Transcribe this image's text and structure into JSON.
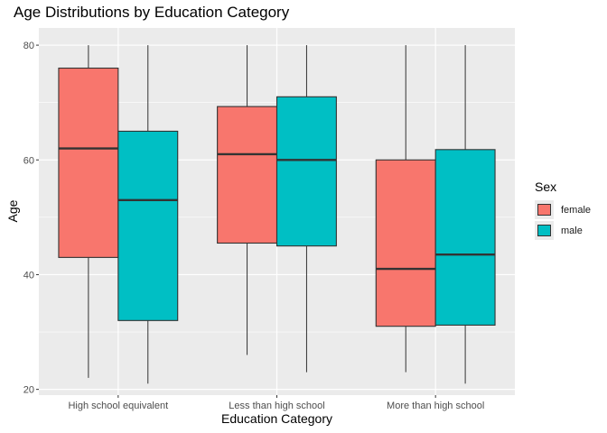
{
  "chart_data": {
    "type": "boxplot",
    "title": "Age Distributions by Education Category",
    "xlabel": "Education Category",
    "ylabel": "Age",
    "categories": [
      "High school equivalent",
      "Less than high school",
      "More than high school"
    ],
    "ylim": [
      19,
      83
    ],
    "yticks": [
      20,
      40,
      60,
      80
    ],
    "grid": true,
    "legend": {
      "title": "Sex",
      "position": "right"
    },
    "series": [
      {
        "name": "female",
        "color": "#F8766D",
        "boxes": [
          {
            "min": 22,
            "q1": 43,
            "median": 62,
            "q3": 76,
            "max": 80
          },
          {
            "min": 26,
            "q1": 45.5,
            "median": 61,
            "q3": 69.3,
            "max": 80
          },
          {
            "min": 23,
            "q1": 31,
            "median": 41,
            "q3": 60,
            "max": 80
          }
        ]
      },
      {
        "name": "male",
        "color": "#00BFC4",
        "boxes": [
          {
            "min": 21,
            "q1": 32,
            "median": 53,
            "q3": 65,
            "max": 80
          },
          {
            "min": 23,
            "q1": 45,
            "median": 60,
            "q3": 71,
            "max": 80
          },
          {
            "min": 21,
            "q1": 31.2,
            "median": 43.5,
            "q3": 61.8,
            "max": 80
          }
        ]
      }
    ]
  }
}
